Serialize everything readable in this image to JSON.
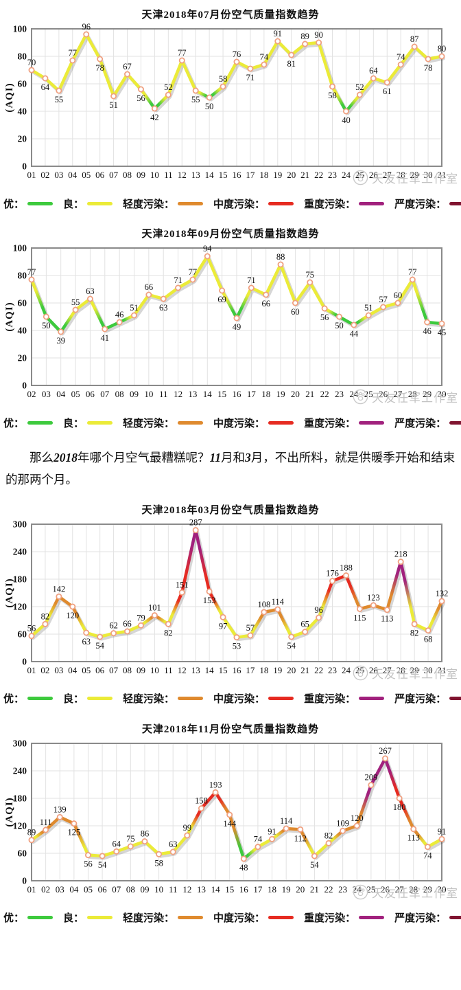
{
  "watermark": {
    "text": "天友任军工作室"
  },
  "legend": [
    {
      "label": "优：",
      "color": "#3dca3d"
    },
    {
      "label": "良：",
      "color": "#ebeb38"
    },
    {
      "label": "轻度污染：",
      "color": "#df8a2e"
    },
    {
      "label": "中度污染：",
      "color": "#e62b21"
    },
    {
      "label": "重度污染：",
      "color": "#a1217d"
    },
    {
      "label": "严度污染：",
      "color": "#801430"
    }
  ],
  "aqi_levels": [
    {
      "label": "优",
      "max": 50,
      "color": "#3dca3d"
    },
    {
      "label": "良",
      "max": 100,
      "color": "#ebeb38"
    },
    {
      "label": "轻度污染",
      "max": 150,
      "color": "#df8a2e"
    },
    {
      "label": "中度污染",
      "max": 200,
      "color": "#e62b21"
    },
    {
      "label": "重度污染",
      "max": 300,
      "color": "#a1217d"
    },
    {
      "label": "严度污染",
      "max": 9999,
      "color": "#801430"
    }
  ],
  "marker_color": "#f0a080",
  "commentary": {
    "segments": [
      {
        "text": "那么",
        "bold": false
      },
      {
        "text": "2018",
        "bold": true
      },
      {
        "text": "年哪个月空气最糟糕呢？",
        "bold": false
      },
      {
        "text": "11",
        "bold": true
      },
      {
        "text": "月和",
        "bold": false
      },
      {
        "text": "3",
        "bold": true
      },
      {
        "text": "月，不出所料，就是供暖季开始和结束的那两个月。",
        "bold": false
      }
    ]
  },
  "chart_data": [
    {
      "type": "line",
      "title": "天津2018年07月份空气质量指数趋势",
      "ylabel": "(AQI)",
      "ylim": [
        0,
        100
      ],
      "yticks": [
        0,
        20,
        40,
        60,
        80,
        100
      ],
      "grid": true,
      "legend_position": "bottom",
      "days": [
        "01",
        "02",
        "03",
        "04",
        "05",
        "06",
        "07",
        "08",
        "09",
        "10",
        "11",
        "12",
        "13",
        "14",
        "15",
        "16",
        "17",
        "18",
        "19",
        "20",
        "21",
        "22",
        "23",
        "24",
        "25",
        "26",
        "27",
        "28",
        "29",
        "30",
        "31"
      ],
      "values": [
        70,
        64,
        55,
        77,
        96,
        78,
        51,
        67,
        56,
        42,
        52,
        77,
        55,
        50,
        58,
        76,
        71,
        74,
        91,
        81,
        89,
        90,
        58,
        40,
        52,
        64,
        61,
        74,
        87,
        78,
        80
      ]
    },
    {
      "type": "line",
      "title": "天津2018年09月份空气质量指数趋势",
      "ylabel": "(AQI)",
      "ylim": [
        0,
        100
      ],
      "yticks": [
        0,
        20,
        40,
        60,
        80,
        100
      ],
      "grid": true,
      "legend_position": "bottom",
      "days": [
        "02",
        "03",
        "04",
        "05",
        "06",
        "07",
        "08",
        "09",
        "10",
        "11",
        "12",
        "13",
        "14",
        "15",
        "16",
        "17",
        "18",
        "19",
        "20",
        "21",
        "22",
        "23",
        "24",
        "25",
        "26",
        "27",
        "28",
        "29",
        "30"
      ],
      "values": [
        77,
        50,
        39,
        55,
        63,
        41,
        46,
        51,
        66,
        63,
        71,
        77,
        94,
        69,
        49,
        71,
        66,
        88,
        60,
        75,
        56,
        50,
        44,
        51,
        57,
        60,
        77,
        46,
        45
      ]
    },
    {
      "type": "line",
      "title": "天津2018年03月份空气质量指数趋势",
      "ylabel": "(AQI)",
      "ylim": [
        0,
        300
      ],
      "yticks": [
        0,
        60,
        120,
        180,
        240,
        300
      ],
      "grid": true,
      "legend_position": "bottom",
      "days": [
        "01",
        "02",
        "03",
        "04",
        "05",
        "06",
        "07",
        "08",
        "09",
        "10",
        "11",
        "12",
        "13",
        "14",
        "15",
        "16",
        "17",
        "18",
        "19",
        "20",
        "21",
        "22",
        "23",
        "24",
        "25",
        "26",
        "27",
        "28",
        "29",
        "30",
        "31"
      ],
      "values": [
        56,
        82,
        142,
        120,
        63,
        54,
        62,
        66,
        79,
        101,
        82,
        151,
        287,
        153,
        97,
        53,
        57,
        108,
        114,
        54,
        65,
        96,
        176,
        188,
        115,
        123,
        113,
        218,
        82,
        68,
        132
      ]
    },
    {
      "type": "line",
      "title": "天津2018年11月份空气质量指数趋势",
      "ylabel": "(AQI)",
      "ylim": [
        0,
        300
      ],
      "yticks": [
        0,
        60,
        120,
        180,
        240,
        300
      ],
      "grid": true,
      "legend_position": "bottom",
      "days": [
        "01",
        "02",
        "03",
        "04",
        "05",
        "06",
        "07",
        "08",
        "09",
        "10",
        "11",
        "12",
        "13",
        "14",
        "15",
        "16",
        "17",
        "18",
        "19",
        "20",
        "21",
        "22",
        "23",
        "24",
        "25",
        "26",
        "27",
        "28",
        "29",
        "30"
      ],
      "values": [
        89,
        111,
        139,
        125,
        56,
        54,
        64,
        75,
        86,
        58,
        63,
        99,
        158,
        193,
        144,
        48,
        74,
        91,
        114,
        112,
        54,
        82,
        109,
        120,
        209,
        267,
        180,
        113,
        74,
        91
      ]
    }
  ]
}
